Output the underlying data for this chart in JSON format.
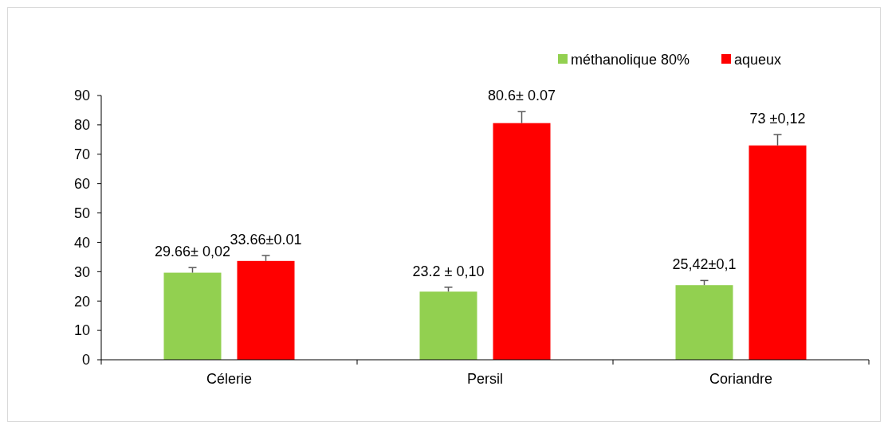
{
  "chart_data": {
    "type": "bar",
    "categories": [
      "Célerie",
      "Persil",
      "Coriandre"
    ],
    "series": [
      {
        "name": "méthanolique 80%",
        "color": "#92d050",
        "values": [
          29.66,
          23.2,
          25.42
        ],
        "errors": [
          [
            29.66,
            31.4
          ],
          [
            23.2,
            24.7
          ],
          [
            25.42,
            27
          ]
        ],
        "value_labels": [
          "29.66± 0,02",
          "23.2 ± 0,10",
          "25,42±0,1"
        ]
      },
      {
        "name": "aqueux",
        "color": "#ff0000",
        "values": [
          33.66,
          80.6,
          73
        ],
        "errors": [
          [
            33.66,
            35.5
          ],
          [
            80.6,
            84.5
          ],
          [
            73,
            76.7
          ]
        ],
        "value_labels": [
          "33.66±0.01",
          "80.6± 0.07",
          "73 ±0,12"
        ]
      }
    ],
    "ylim": [
      0,
      90
    ],
    "yticks": [
      0,
      10,
      20,
      30,
      40,
      50,
      60,
      70,
      80,
      90
    ],
    "grid": false,
    "legend": "top right"
  }
}
